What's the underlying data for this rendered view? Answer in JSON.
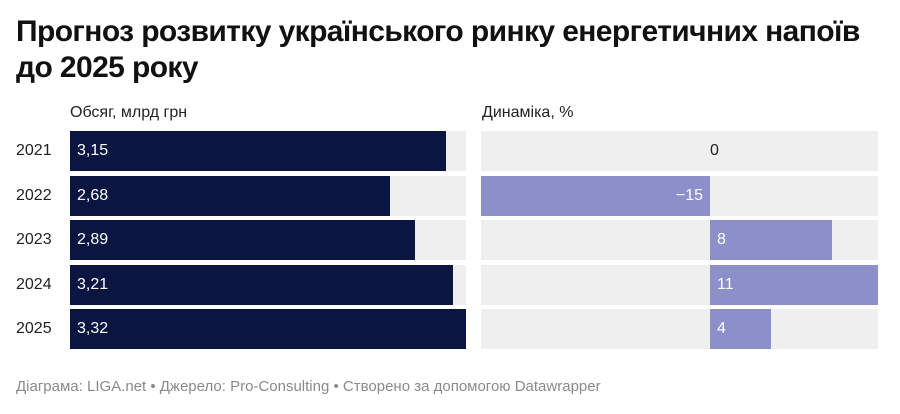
{
  "title": "Прогноз розвитку українського ринку енергетичних напоїв до 2025 року",
  "footer": "Діаграма: LIGA.net • Джерело: Pro-Consulting • Створено за допомогою Datawrapper",
  "colors": {
    "volume_bar": "#0b1542",
    "dynamics_bar": "#8c8fc9",
    "track": "#efefef",
    "volume_label": "#ffffff",
    "dynamics_label": "#ffffff"
  },
  "chart_data": [
    {
      "type": "bar",
      "orientation": "horizontal",
      "title": "Обсяг, млрд грн",
      "categories": [
        "2021",
        "2022",
        "2023",
        "2024",
        "2025"
      ],
      "values": [
        3.15,
        2.68,
        2.89,
        3.21,
        3.32
      ],
      "value_labels": [
        "3,15",
        "2,68",
        "2,89",
        "3,21",
        "3,32"
      ],
      "xlim": [
        0,
        3.32
      ]
    },
    {
      "type": "bar",
      "orientation": "horizontal",
      "title": "Динаміка, %",
      "categories": [
        "2021",
        "2022",
        "2023",
        "2024",
        "2025"
      ],
      "values": [
        0,
        -15,
        8,
        11,
        4
      ],
      "value_labels": [
        "0",
        "−15",
        "8",
        "11",
        "4"
      ],
      "xlim": [
        -15,
        11
      ]
    }
  ]
}
